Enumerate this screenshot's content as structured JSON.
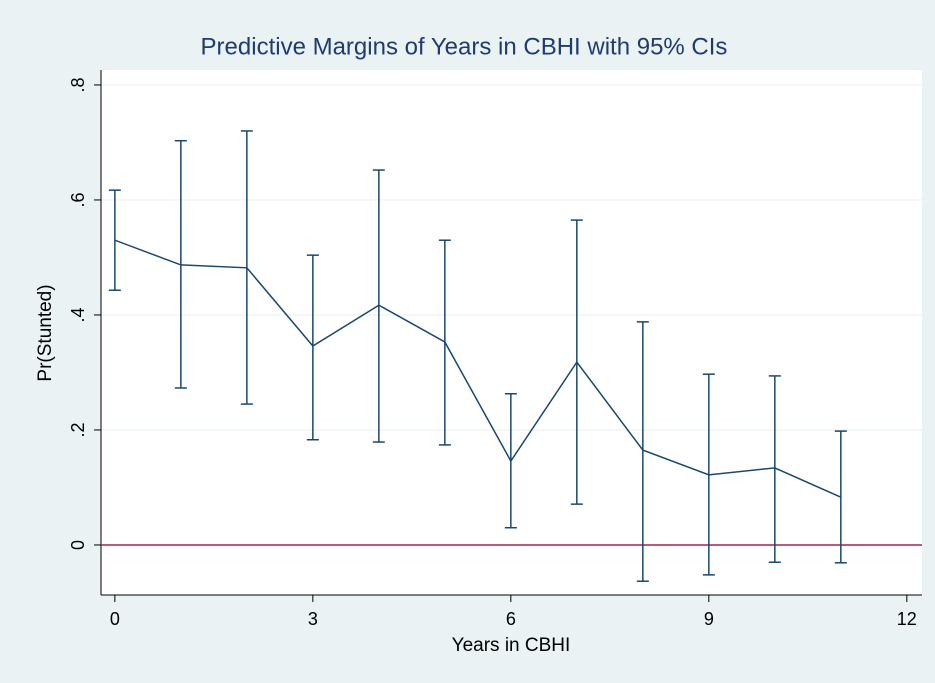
{
  "chart_data": {
    "type": "line",
    "title": "Predictive Margins of Years in CBHI with 95% CIs",
    "x_label": "Years in CBHI",
    "y_label": "Pr(Stunted)",
    "x": [
      0,
      1,
      2,
      3,
      4,
      5,
      6,
      7,
      8,
      9,
      10,
      11
    ],
    "values": [
      0.53,
      0.487,
      0.482,
      0.346,
      0.417,
      0.353,
      0.146,
      0.318,
      0.165,
      0.122,
      0.134,
      0.083
    ],
    "lower": [
      0.443,
      0.273,
      0.245,
      0.183,
      0.179,
      0.174,
      0.03,
      0.071,
      -0.063,
      -0.052,
      -0.03,
      -0.031
    ],
    "upper": [
      0.617,
      0.703,
      0.72,
      0.504,
      0.652,
      0.53,
      0.263,
      0.565,
      0.388,
      0.297,
      0.294,
      0.198
    ],
    "color": "#1a476f",
    "yline": 0,
    "yline_color": "#a4274a",
    "xlim": [
      -0.21,
      12.23
    ],
    "ylim": [
      -0.087,
      0.826
    ],
    "xticks": [
      0,
      3,
      6,
      9,
      12
    ],
    "yticks": [
      0,
      {
        "value": 0.2,
        "label": ".2"
      },
      {
        "value": 0.4,
        "label": ".4"
      },
      {
        "value": 0.6,
        "label": ".6"
      },
      {
        "value": 0.8,
        "label": ".8"
      }
    ],
    "grid": true
  }
}
